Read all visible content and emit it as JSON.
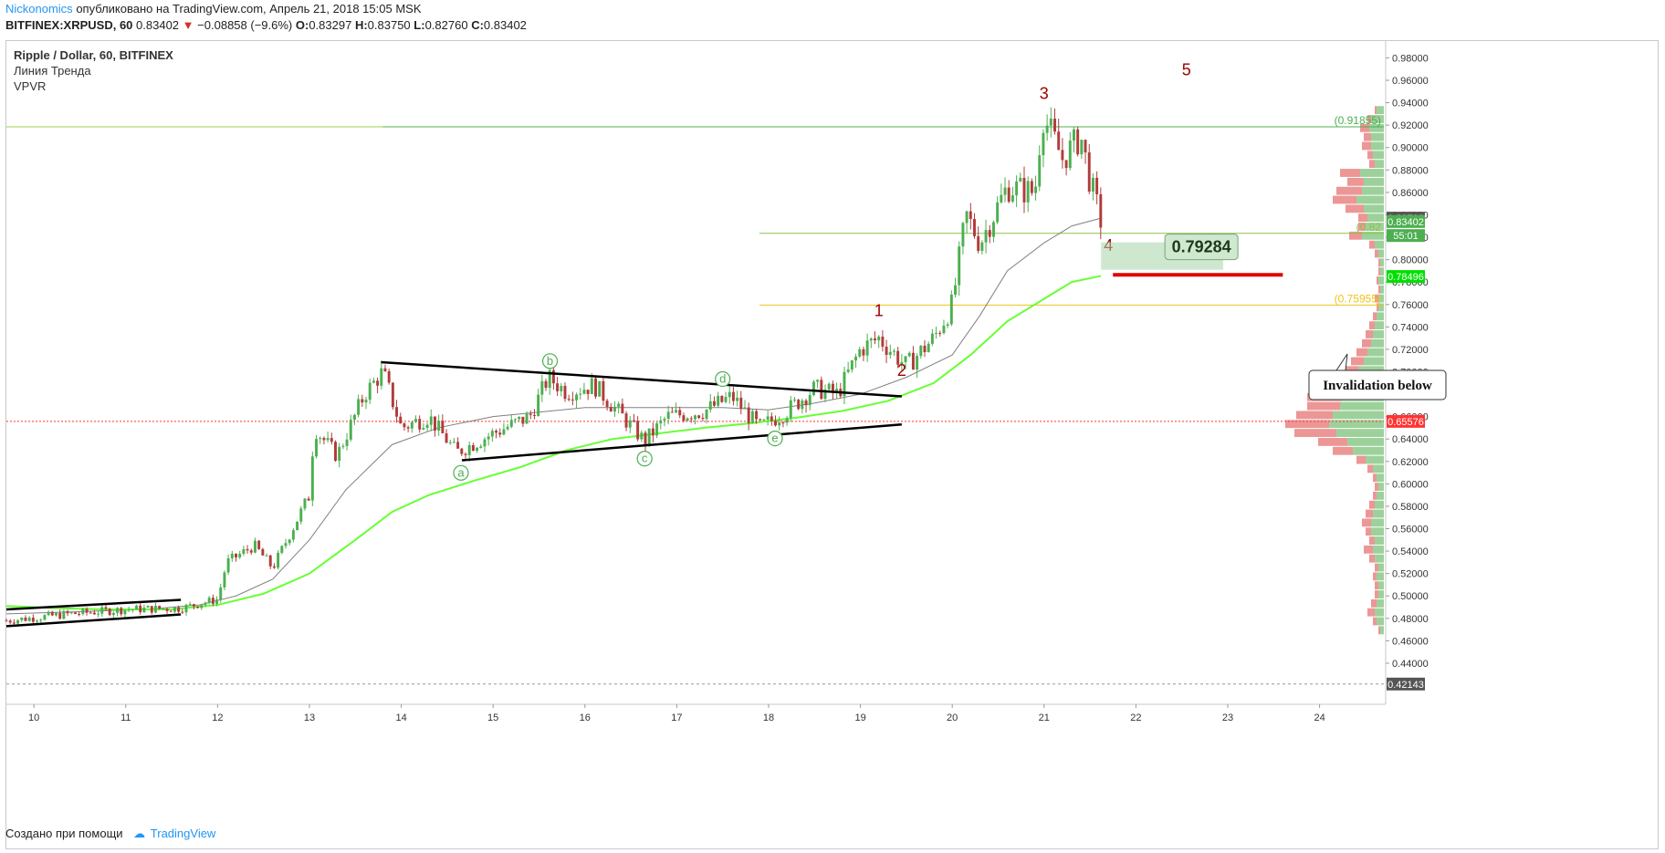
{
  "header": {
    "author": "Nickonomics",
    "published_text": "опубликовано на TradingView.com, Апрель 21, 2018 15:05 MSK",
    "symbol": "BITFINEX:XRPUSD, 60",
    "last": "0.83402",
    "change": "−0.08858 (−9.6%)",
    "open_label": "O:",
    "open": "0.83297",
    "high_label": "H:",
    "high": "0.83750",
    "low_label": "L:",
    "low": "0.82760",
    "close_label": "C:",
    "close": "0.83402"
  },
  "legend": {
    "title": "Ripple / Dollar, 60, BITFINEX",
    "indicator1": "Линия Тренда",
    "indicator2": "VPVR"
  },
  "footer": {
    "created_with": "Создано при помощи",
    "brand": "TradingView"
  },
  "colors": {
    "up": "#4caf50",
    "down": "#b23b3b",
    "ema_fast": "#808080",
    "ema_slow": "#66ff33",
    "fib_top": "#4caf50",
    "fib_mid": "#8bc34a",
    "fib_low": "#f0c419",
    "wave": "#a00000",
    "abc": "#4caf50",
    "volume_up": "#7cc27a",
    "volume_down": "#e57373"
  },
  "chart_data": {
    "type": "candlestick",
    "title": "Ripple / Dollar, 60, BITFINEX",
    "x_axis_ticks": [
      "10",
      "11",
      "12",
      "13",
      "14",
      "15",
      "16",
      "17",
      "18",
      "19",
      "20",
      "21",
      "22",
      "23",
      "24"
    ],
    "y_axis_ticks": [
      "0.98000",
      "0.96000",
      "0.94000",
      "0.92000",
      "0.90000",
      "0.88000",
      "0.86000",
      "0.84000",
      "0.82000",
      "0.80000",
      "0.78000",
      "0.76000",
      "0.74000",
      "0.72000",
      "0.70000",
      "0.68000",
      "0.66000",
      "0.64000",
      "0.62000",
      "0.60000",
      "0.58000",
      "0.56000",
      "0.54000",
      "0.52000",
      "0.50000",
      "0.48000",
      "0.46000",
      "0.44000"
    ],
    "ylim": [
      0.418,
      0.995
    ],
    "xlim": [
      9.7,
      24.7
    ],
    "price_badges": [
      {
        "label": "0.83703",
        "value": 0.83703,
        "color": "#555555"
      },
      {
        "label": "0.83402",
        "value": 0.83402,
        "color": "#4caf50"
      },
      {
        "label": "55:01",
        "value": 0.8215,
        "color": "#4caf50"
      },
      {
        "label": "0.78496",
        "value": 0.78496,
        "color": "#00e000"
      },
      {
        "label": "0.65576",
        "value": 0.65576,
        "color": "#ff3333"
      },
      {
        "label": "0.42143",
        "value": 0.42143,
        "color": "#555555"
      }
    ],
    "levels": [
      {
        "label": "(0.91855)",
        "value": 0.91855,
        "color": "#4caf50",
        "from": 13.8
      },
      {
        "label": "(0.82347)",
        "value": 0.82347,
        "color": "#8bc34a",
        "from": 17.9
      },
      {
        "label": "(0.75955)",
        "value": 0.75955,
        "color": "#f0c419",
        "from": 17.9
      }
    ],
    "level_display": [
      "(0.91855)",
      "(0.82",
      "(0.75955)"
    ],
    "red_dotted_level": 0.65576,
    "target_box": {
      "label": "0.79284",
      "x0": 21.62,
      "x1": 22.95,
      "y0": 0.791,
      "y1": 0.8155
    },
    "invalidation_line": {
      "x0": 21.75,
      "x1": 23.6,
      "y": 0.7865
    },
    "callout": "Invalidation below",
    "wave_labels": [
      {
        "label": "1",
        "x": 19.2,
        "y": 0.7495
      },
      {
        "label": "2",
        "x": 19.45,
        "y": 0.6965
      },
      {
        "label": "3",
        "x": 21.0,
        "y": 0.9435
      },
      {
        "label": "4",
        "x": 21.7,
        "y": 0.808
      },
      {
        "label": "5",
        "x": 22.55,
        "y": 0.9645
      }
    ],
    "abc_labels": [
      {
        "label": "a",
        "x": 14.65,
        "y": 0.6098
      },
      {
        "label": "b",
        "x": 15.62,
        "y": 0.7095
      },
      {
        "label": "c",
        "x": 16.65,
        "y": 0.6225
      },
      {
        "label": "d",
        "x": 17.5,
        "y": 0.6935
      },
      {
        "label": "e",
        "x": 18.07,
        "y": 0.6405
      }
    ],
    "trendlines": [
      {
        "x0": 13.78,
        "y0": 0.7085,
        "x1": 19.45,
        "y1": 0.678
      },
      {
        "x0": 14.66,
        "y0": 0.621,
        "x1": 19.45,
        "y1": 0.653
      },
      {
        "x0": 9.7,
        "y0": 0.488,
        "x1": 11.6,
        "y1": 0.4965
      },
      {
        "x0": 9.7,
        "y0": 0.473,
        "x1": 11.6,
        "y1": 0.4835
      }
    ],
    "ema_fast": [
      [
        9.7,
        0.484
      ],
      [
        10.5,
        0.486
      ],
      [
        11.2,
        0.488
      ],
      [
        11.8,
        0.492
      ],
      [
        12.2,
        0.5
      ],
      [
        12.6,
        0.515
      ],
      [
        13.0,
        0.55
      ],
      [
        13.4,
        0.595
      ],
      [
        13.9,
        0.635
      ],
      [
        14.4,
        0.65
      ],
      [
        15.0,
        0.66
      ],
      [
        15.5,
        0.664
      ],
      [
        16.0,
        0.668
      ],
      [
        16.5,
        0.668
      ],
      [
        17.0,
        0.668
      ],
      [
        17.5,
        0.668
      ],
      [
        18.0,
        0.666
      ],
      [
        18.5,
        0.672
      ],
      [
        19.0,
        0.68
      ],
      [
        19.5,
        0.695
      ],
      [
        20.0,
        0.715
      ],
      [
        20.3,
        0.75
      ],
      [
        20.6,
        0.79
      ],
      [
        21.0,
        0.815
      ],
      [
        21.3,
        0.83
      ],
      [
        21.62,
        0.837
      ]
    ],
    "ema_slow": [
      [
        9.7,
        0.491
      ],
      [
        10.3,
        0.489
      ],
      [
        10.8,
        0.488
      ],
      [
        11.5,
        0.488
      ],
      [
        12.0,
        0.492
      ],
      [
        12.5,
        0.502
      ],
      [
        13.0,
        0.52
      ],
      [
        13.5,
        0.55
      ],
      [
        13.9,
        0.575
      ],
      [
        14.3,
        0.59
      ],
      [
        14.8,
        0.603
      ],
      [
        15.3,
        0.615
      ],
      [
        15.8,
        0.63
      ],
      [
        16.3,
        0.64
      ],
      [
        16.8,
        0.645
      ],
      [
        17.3,
        0.65
      ],
      [
        17.8,
        0.654
      ],
      [
        18.3,
        0.659
      ],
      [
        18.8,
        0.665
      ],
      [
        19.3,
        0.674
      ],
      [
        19.8,
        0.69
      ],
      [
        20.2,
        0.715
      ],
      [
        20.6,
        0.745
      ],
      [
        21.0,
        0.765
      ],
      [
        21.3,
        0.78
      ],
      [
        21.62,
        0.7855
      ]
    ],
    "anchors": [
      [
        9.7,
        0.478
      ],
      [
        10.4,
        0.484
      ],
      [
        11.0,
        0.488
      ],
      [
        11.6,
        0.489
      ],
      [
        12.0,
        0.497
      ],
      [
        12.1,
        0.53
      ],
      [
        12.4,
        0.545
      ],
      [
        12.6,
        0.525
      ],
      [
        13.0,
        0.59
      ],
      [
        13.05,
        0.65
      ],
      [
        13.3,
        0.625
      ],
      [
        13.6,
        0.68
      ],
      [
        13.8,
        0.7
      ],
      [
        14.0,
        0.65
      ],
      [
        14.3,
        0.66
      ],
      [
        14.6,
        0.628
      ],
      [
        15.0,
        0.645
      ],
      [
        15.4,
        0.66
      ],
      [
        15.6,
        0.695
      ],
      [
        15.8,
        0.682
      ],
      [
        16.1,
        0.688
      ],
      [
        16.3,
        0.67
      ],
      [
        16.65,
        0.638
      ],
      [
        16.9,
        0.66
      ],
      [
        17.3,
        0.665
      ],
      [
        17.6,
        0.678
      ],
      [
        17.9,
        0.65
      ],
      [
        18.2,
        0.665
      ],
      [
        18.5,
        0.685
      ],
      [
        18.75,
        0.68
      ],
      [
        19.0,
        0.72
      ],
      [
        19.2,
        0.73
      ],
      [
        19.5,
        0.705
      ],
      [
        19.8,
        0.73
      ],
      [
        20.0,
        0.76
      ],
      [
        20.15,
        0.84
      ],
      [
        20.3,
        0.815
      ],
      [
        20.6,
        0.865
      ],
      [
        20.9,
        0.86
      ],
      [
        20.98,
        0.93
      ],
      [
        21.2,
        0.89
      ],
      [
        21.4,
        0.91
      ],
      [
        21.5,
        0.87
      ],
      [
        21.62,
        0.834
      ]
    ],
    "volume_profile": [
      {
        "y": 0.933,
        "up": 8,
        "down": 2
      },
      {
        "y": 0.925,
        "up": 14,
        "down": 4
      },
      {
        "y": 0.917,
        "up": 16,
        "down": 10
      },
      {
        "y": 0.909,
        "up": 14,
        "down": 8
      },
      {
        "y": 0.901,
        "up": 14,
        "down": 10
      },
      {
        "y": 0.893,
        "up": 12,
        "down": 6
      },
      {
        "y": 0.885,
        "up": 10,
        "down": 6
      },
      {
        "y": 0.877,
        "up": 26,
        "down": 22
      },
      {
        "y": 0.869,
        "up": 22,
        "down": 18
      },
      {
        "y": 0.861,
        "up": 24,
        "down": 28
      },
      {
        "y": 0.853,
        "up": 30,
        "down": 26
      },
      {
        "y": 0.845,
        "up": 22,
        "down": 20
      },
      {
        "y": 0.837,
        "up": 18,
        "down": 10
      },
      {
        "y": 0.829,
        "up": 20,
        "down": 8
      },
      {
        "y": 0.821,
        "up": 24,
        "down": 14
      },
      {
        "y": 0.813,
        "up": 10,
        "down": 6
      },
      {
        "y": 0.805,
        "up": 6,
        "down": 4
      },
      {
        "y": 0.797,
        "up": 4,
        "down": 2
      },
      {
        "y": 0.789,
        "up": 4,
        "down": 2
      },
      {
        "y": 0.781,
        "up": 6,
        "down": 2
      },
      {
        "y": 0.773,
        "up": 4,
        "down": 2
      },
      {
        "y": 0.765,
        "up": 6,
        "down": 4
      },
      {
        "y": 0.757,
        "up": 6,
        "down": 2
      },
      {
        "y": 0.749,
        "up": 8,
        "down": 4
      },
      {
        "y": 0.741,
        "up": 10,
        "down": 6
      },
      {
        "y": 0.733,
        "up": 12,
        "down": 8
      },
      {
        "y": 0.725,
        "up": 14,
        "down": 10
      },
      {
        "y": 0.717,
        "up": 18,
        "down": 12
      },
      {
        "y": 0.709,
        "up": 22,
        "down": 14
      },
      {
        "y": 0.701,
        "up": 28,
        "down": 16
      },
      {
        "y": 0.693,
        "up": 42,
        "down": 40
      },
      {
        "y": 0.685,
        "up": 40,
        "down": 36
      },
      {
        "y": 0.677,
        "up": 46,
        "down": 38
      },
      {
        "y": 0.669,
        "up": 48,
        "down": 36
      },
      {
        "y": 0.661,
        "up": 56,
        "down": 40
      },
      {
        "y": 0.653,
        "up": 60,
        "down": 48
      },
      {
        "y": 0.645,
        "up": 52,
        "down": 46
      },
      {
        "y": 0.637,
        "up": 40,
        "down": 32
      },
      {
        "y": 0.629,
        "up": 34,
        "down": 22
      },
      {
        "y": 0.621,
        "up": 20,
        "down": 10
      },
      {
        "y": 0.613,
        "up": 12,
        "down": 6
      },
      {
        "y": 0.605,
        "up": 8,
        "down": 4
      },
      {
        "y": 0.597,
        "up": 6,
        "down": 4
      },
      {
        "y": 0.589,
        "up": 8,
        "down": 4
      },
      {
        "y": 0.581,
        "up": 10,
        "down": 6
      },
      {
        "y": 0.573,
        "up": 12,
        "down": 8
      },
      {
        "y": 0.565,
        "up": 14,
        "down": 10
      },
      {
        "y": 0.557,
        "up": 14,
        "down": 6
      },
      {
        "y": 0.549,
        "up": 10,
        "down": 6
      },
      {
        "y": 0.541,
        "up": 12,
        "down": 10
      },
      {
        "y": 0.533,
        "up": 10,
        "down": 6
      },
      {
        "y": 0.525,
        "up": 6,
        "down": 4
      },
      {
        "y": 0.517,
        "up": 8,
        "down": 4
      },
      {
        "y": 0.509,
        "up": 6,
        "down": 4
      },
      {
        "y": 0.501,
        "up": 6,
        "down": 4
      },
      {
        "y": 0.493,
        "up": 8,
        "down": 6
      },
      {
        "y": 0.485,
        "up": 10,
        "down": 8
      },
      {
        "y": 0.477,
        "up": 8,
        "down": 4
      },
      {
        "y": 0.469,
        "up": 4,
        "down": 2
      }
    ]
  }
}
